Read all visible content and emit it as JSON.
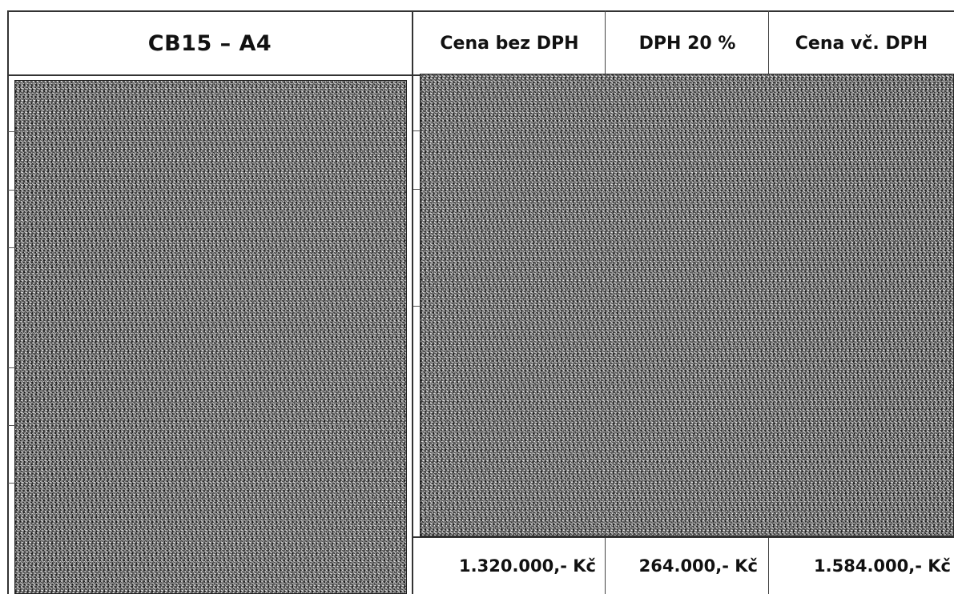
{
  "table": {
    "header": {
      "product": "CB15 – A4",
      "price_without_vat": "Cena bez DPH",
      "vat": "DPH 20 %",
      "price_with_vat": "Cena vč. DPH"
    },
    "prices": {
      "price_without_vat": "1.320.000,- Kč",
      "vat": "264.000,- Kč",
      "price_with_vat": "1.584.000,- Kč"
    }
  },
  "colors": {
    "text": "#111111",
    "grid": "#333333",
    "redaction": "#7a7a7a"
  }
}
